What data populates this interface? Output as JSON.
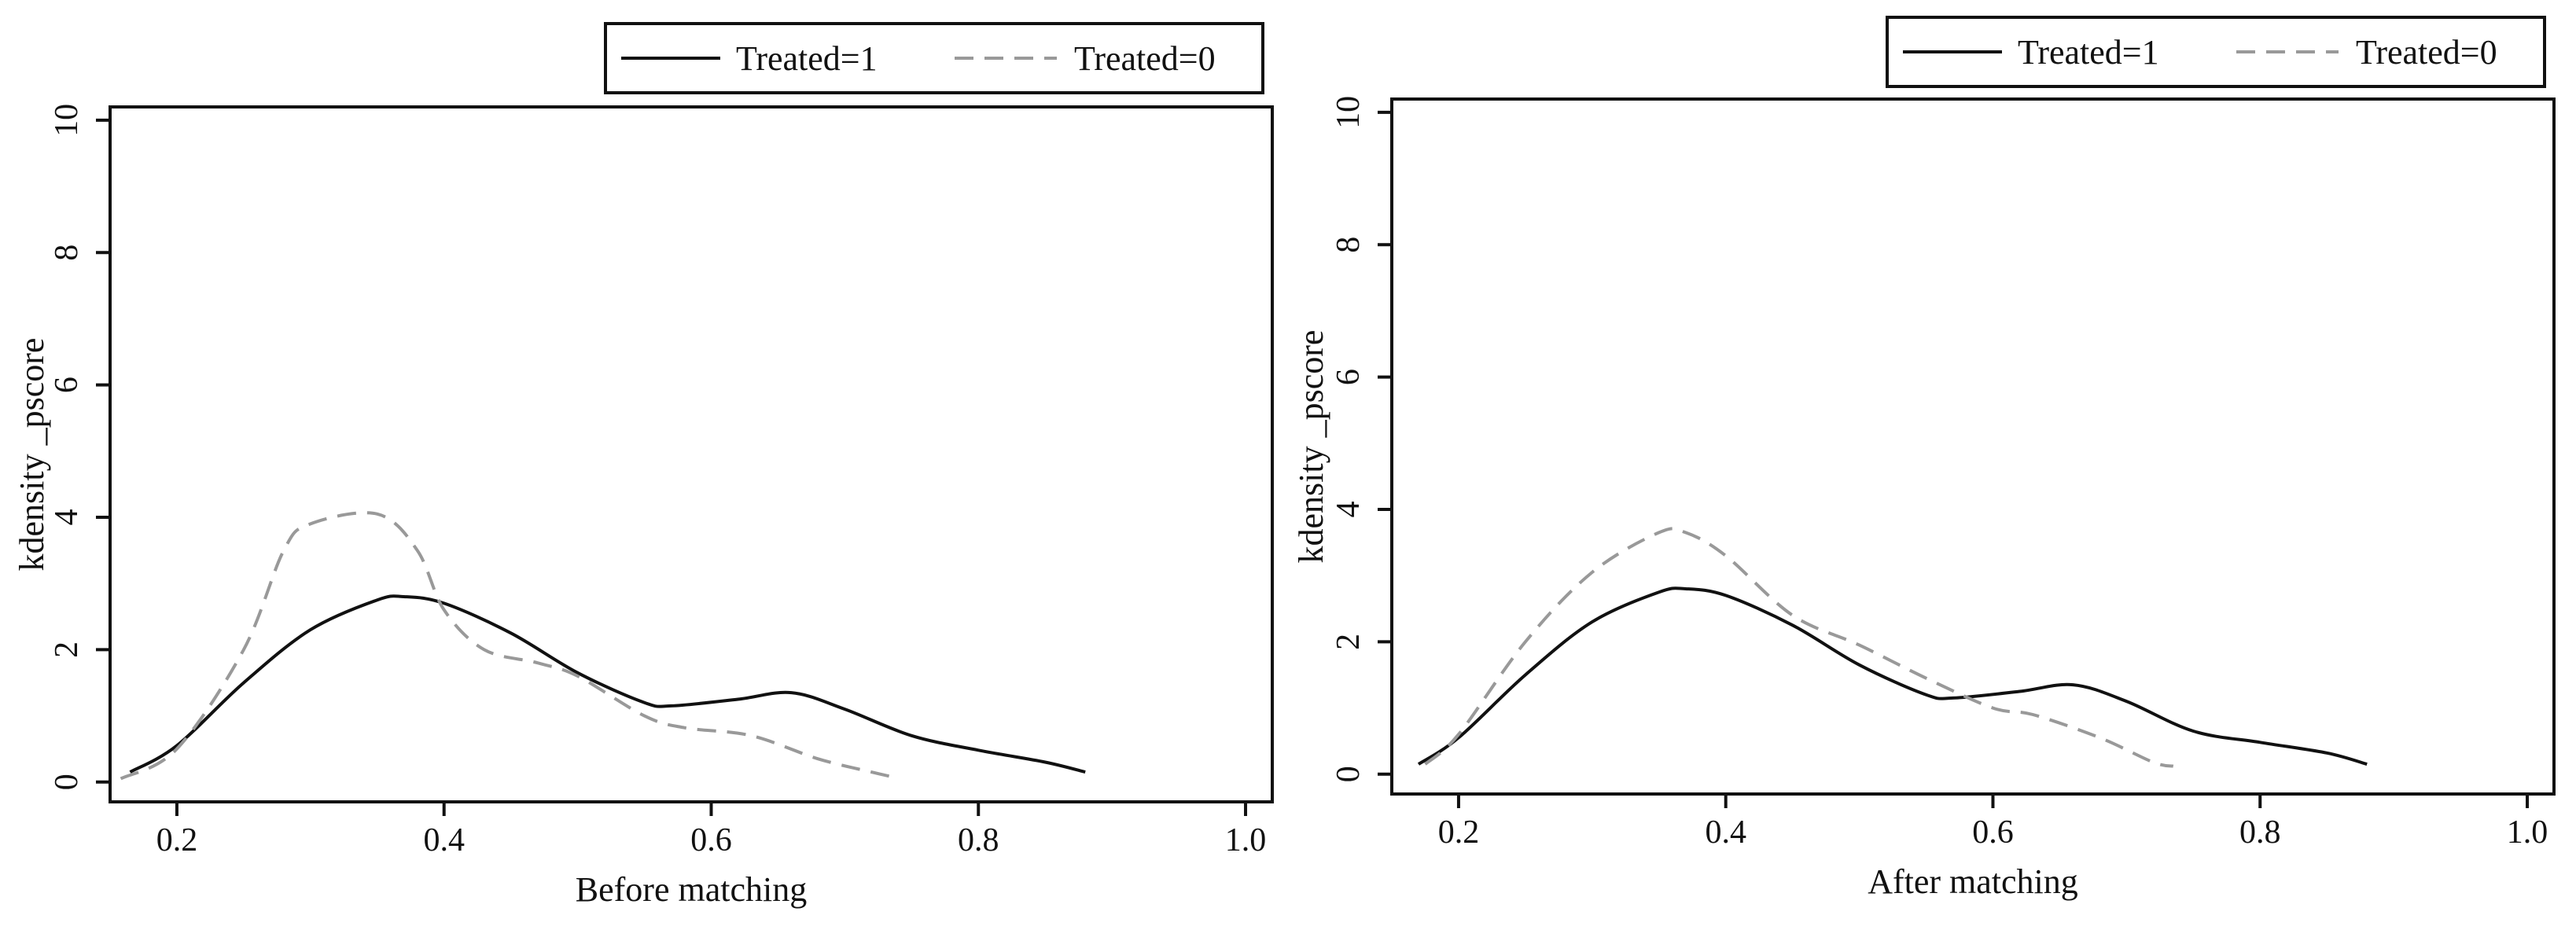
{
  "chart_data": [
    {
      "type": "line",
      "xlabel": "Before matching",
      "ylabel": "kdensity _pscore",
      "xlim": [
        0.15,
        1.02
      ],
      "ylim": [
        -0.3,
        10.2
      ],
      "xticks": [
        0.2,
        0.4,
        0.6,
        0.8,
        1.0
      ],
      "xtick_labels": [
        "0.2",
        "0.4",
        "0.6",
        "0.8",
        "1.0"
      ],
      "yticks": [
        0,
        2,
        4,
        6,
        8,
        10
      ],
      "ytick_labels": [
        "0",
        "2",
        "4",
        "6",
        "8",
        "10"
      ],
      "grid": false,
      "legend_position": "top-right",
      "series": [
        {
          "name": "Treated=1",
          "style": "solid",
          "color": "#111111",
          "x": [
            0.165,
            0.2,
            0.25,
            0.3,
            0.35,
            0.37,
            0.4,
            0.45,
            0.5,
            0.55,
            0.57,
            0.62,
            0.66,
            0.7,
            0.75,
            0.8,
            0.85,
            0.88
          ],
          "y": [
            0.15,
            0.55,
            1.5,
            2.3,
            2.75,
            2.8,
            2.7,
            2.25,
            1.65,
            1.2,
            1.15,
            1.25,
            1.35,
            1.1,
            0.7,
            0.48,
            0.3,
            0.15
          ]
        },
        {
          "name": "Treated=0",
          "style": "dashed",
          "color": "#999999",
          "x": [
            0.158,
            0.2,
            0.25,
            0.28,
            0.3,
            0.35,
            0.38,
            0.4,
            0.43,
            0.47,
            0.5,
            0.55,
            0.58,
            0.63,
            0.68,
            0.72,
            0.735
          ],
          "y": [
            0.05,
            0.5,
            2.0,
            3.5,
            3.9,
            4.05,
            3.5,
            2.6,
            2.0,
            1.8,
            1.6,
            1.0,
            0.82,
            0.7,
            0.35,
            0.15,
            0.08
          ]
        }
      ]
    },
    {
      "type": "line",
      "xlabel": "After matching",
      "ylabel": "kdensity _pscore",
      "xlim": [
        0.15,
        1.02
      ],
      "ylim": [
        -0.3,
        10.2
      ],
      "xticks": [
        0.2,
        0.4,
        0.6,
        0.8,
        1.0
      ],
      "xtick_labels": [
        "0.2",
        "0.4",
        "0.6",
        "0.8",
        "1.0"
      ],
      "yticks": [
        0,
        2,
        4,
        6,
        8,
        10
      ],
      "ytick_labels": [
        "0",
        "2",
        "4",
        "6",
        "8",
        "10"
      ],
      "grid": false,
      "legend_position": "top-right",
      "series": [
        {
          "name": "Treated=1",
          "style": "solid",
          "color": "#111111",
          "x": [
            0.17,
            0.2,
            0.25,
            0.3,
            0.35,
            0.37,
            0.4,
            0.45,
            0.5,
            0.55,
            0.57,
            0.62,
            0.66,
            0.7,
            0.75,
            0.8,
            0.85,
            0.88
          ],
          "y": [
            0.15,
            0.55,
            1.5,
            2.3,
            2.75,
            2.8,
            2.7,
            2.25,
            1.65,
            1.2,
            1.15,
            1.25,
            1.35,
            1.1,
            0.65,
            0.48,
            0.32,
            0.15
          ]
        },
        {
          "name": "Treated=0",
          "style": "dashed",
          "color": "#999999",
          "x": [
            0.175,
            0.2,
            0.25,
            0.3,
            0.35,
            0.37,
            0.4,
            0.45,
            0.5,
            0.55,
            0.6,
            0.63,
            0.68,
            0.72,
            0.735
          ],
          "y": [
            0.15,
            0.6,
            2.0,
            3.05,
            3.65,
            3.65,
            3.3,
            2.4,
            1.95,
            1.45,
            1.0,
            0.9,
            0.55,
            0.18,
            0.12
          ]
        }
      ]
    }
  ]
}
